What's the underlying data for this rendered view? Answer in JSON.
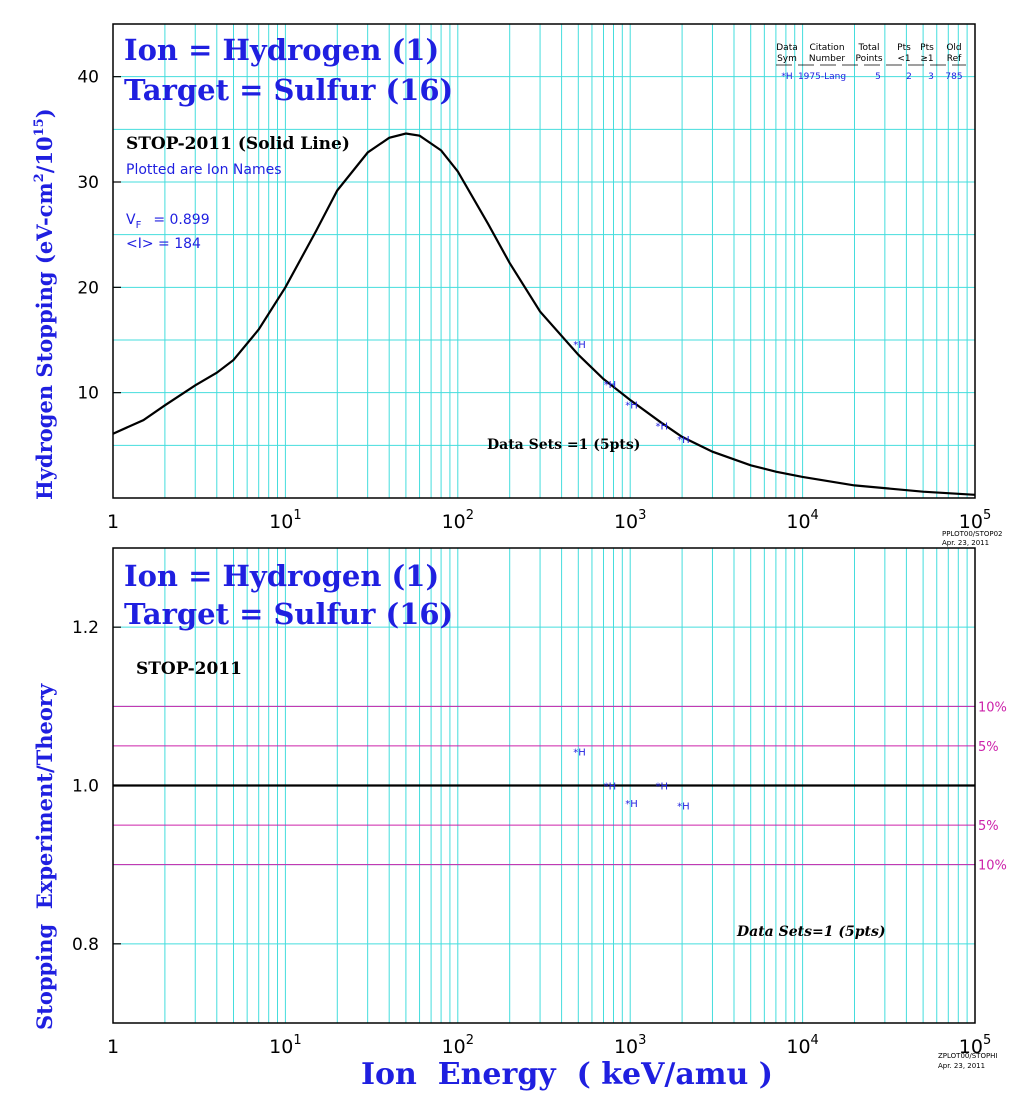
{
  "colors": {
    "grid": "#44dddd",
    "axis": "#000000",
    "curve": "#000000",
    "blue": "#1f1fe0",
    "pct": "#cc22aa"
  },
  "top": {
    "title_line1": "Ion = Hydrogen (1)",
    "title_line2": "Target = Sulfur (16)",
    "model": "STOP-2011 (Solid Line)",
    "plotted_note": "Plotted are Ion Names",
    "vf_label": "V",
    "vf_sub": "F",
    "vf_value": "= 0.899",
    "i_text": "<I> = 184",
    "datasets": "Data Sets =1 (5pts)",
    "ylabel_main": "Hydrogen Stopping (eV-cm",
    "ylabel_sup1": "2",
    "ylabel_mid": "/10",
    "ylabel_sup2": "15",
    "ylabel_end": ")",
    "stamp1": "PPLOT00/STOP02",
    "stamp2": "Apr. 23, 2011",
    "table": {
      "headers_row1": [
        "Data",
        "Citation",
        "Total",
        "Pts",
        "Pts",
        "Old"
      ],
      "headers_row2": [
        "Sym",
        "Number",
        "Points",
        "<1",
        "≥1",
        "Ref"
      ],
      "row": [
        "*H",
        "1975-Lang",
        "5",
        "2",
        "3",
        "785"
      ]
    }
  },
  "bottom": {
    "title_line1": "Ion = Hydrogen (1)",
    "title_line2": "Target = Sulfur (16)",
    "model": "STOP-2011",
    "datasets": "Data Sets=1 (5pts)",
    "ylabel": "Stopping  Experiment/Theory",
    "xlabel": "Ion  Energy  ( keV/amu )",
    "pct_labels": [
      "10%",
      "5%",
      "5%",
      "10%"
    ],
    "stamp1": "ZPLOT00/STOPHI",
    "stamp2": "Apr. 23, 2011"
  },
  "chart_data": [
    {
      "type": "line",
      "title": "Ion = Hydrogen (1) / Target = Sulfur (16)",
      "xlabel": "Ion Energy ( keV/amu )",
      "ylabel": "Hydrogen Stopping (eV-cm2/10^15)",
      "x_scale": "log",
      "xlim": [
        1,
        100000
      ],
      "ylim": [
        0,
        45
      ],
      "x_tick_labels": [
        "1",
        "10",
        "10",
        "10",
        "10",
        "10"
      ],
      "x_tick_exponents": [
        "",
        "1",
        "2",
        "3",
        "4",
        "5"
      ],
      "x_tick_values": [
        1,
        10,
        100,
        1000,
        10000,
        100000
      ],
      "y_tick_labels": [
        "10",
        "20",
        "30",
        "40"
      ],
      "y_tick_values": [
        10,
        20,
        30,
        40
      ],
      "grid": true,
      "series": [
        {
          "name": "STOP-2011 (Solid Line)",
          "style": "line",
          "x": [
            1,
            1.5,
            2,
            3,
            4,
            5,
            7,
            10,
            15,
            20,
            30,
            40,
            50,
            60,
            80,
            100,
            150,
            200,
            300,
            500,
            700,
            1000,
            1500,
            2000,
            3000,
            5000,
            7000,
            10000,
            20000,
            50000,
            100000
          ],
          "y": [
            6.1,
            7.4,
            8.8,
            10.7,
            11.9,
            13.1,
            16.0,
            20.0,
            25.3,
            29.2,
            32.8,
            34.2,
            34.6,
            34.4,
            33.0,
            31.0,
            26.0,
            22.3,
            17.7,
            13.6,
            11.3,
            9.3,
            7.2,
            5.8,
            4.4,
            3.1,
            2.5,
            2.0,
            1.2,
            0.6,
            0.3
          ]
        },
        {
          "name": "*H",
          "style": "points",
          "x": [
            500,
            750,
            1000,
            1500,
            2000
          ],
          "y": [
            14.6,
            10.8,
            8.9,
            6.9,
            5.6
          ]
        }
      ]
    },
    {
      "type": "scatter",
      "title": "Ion = Hydrogen (1) / Target = Sulfur (16)",
      "xlabel": "Ion Energy ( keV/amu )",
      "ylabel": "Stopping Experiment/Theory",
      "x_scale": "log",
      "xlim": [
        1,
        100000
      ],
      "ylim": [
        0.7,
        1.3
      ],
      "x_tick_labels": [
        "1",
        "10",
        "10",
        "10",
        "10",
        "10"
      ],
      "x_tick_exponents": [
        "",
        "1",
        "2",
        "3",
        "4",
        "5"
      ],
      "x_tick_values": [
        1,
        10,
        100,
        1000,
        10000,
        100000
      ],
      "y_tick_labels": [
        "0.8",
        "1.0",
        "1.2"
      ],
      "y_tick_values": [
        0.8,
        1.0,
        1.2
      ],
      "reference_lines": [
        0.9,
        0.95,
        1.0,
        1.05,
        1.1
      ],
      "grid": true,
      "series": [
        {
          "name": "*H",
          "x": [
            500,
            750,
            1000,
            1500,
            2000
          ],
          "y": [
            1.043,
            1.0,
            0.978,
            1.0,
            0.975
          ]
        }
      ]
    }
  ]
}
